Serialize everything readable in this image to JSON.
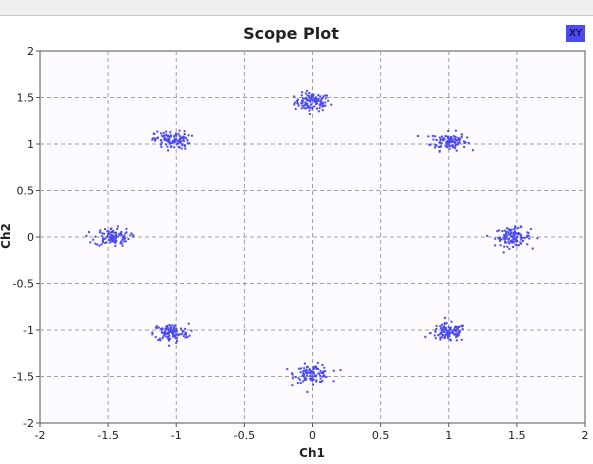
{
  "chart_data": {
    "type": "scatter",
    "title": "Scope Plot",
    "xlabel": "Ch1",
    "ylabel": "Ch2",
    "xlim": [
      -2,
      2
    ],
    "ylim": [
      -2,
      2
    ],
    "xticks": [
      "-2",
      "-1.5",
      "-1",
      "-0.5",
      "0",
      "0.5",
      "1",
      "1.5",
      "2"
    ],
    "yticks": [
      "2",
      "1.5",
      "1",
      "0.5",
      "0",
      "-0.5",
      "-1",
      "-1.5",
      "-2"
    ],
    "grid": true,
    "legend_position": "top-right",
    "series": [
      {
        "name": "XY",
        "color": "#4a4af0",
        "clusters": [
          {
            "x": 0,
            "y": 1.45
          },
          {
            "x": 1.0,
            "y": 1.03
          },
          {
            "x": 1.47,
            "y": 0
          },
          {
            "x": 1.0,
            "y": -1.03
          },
          {
            "x": 0,
            "y": -1.47
          },
          {
            "x": -1.04,
            "y": -1.03
          },
          {
            "x": -1.47,
            "y": 0
          },
          {
            "x": -1.03,
            "y": 1.04
          }
        ],
        "spread": 0.065,
        "points_per_cluster": 110
      }
    ]
  }
}
